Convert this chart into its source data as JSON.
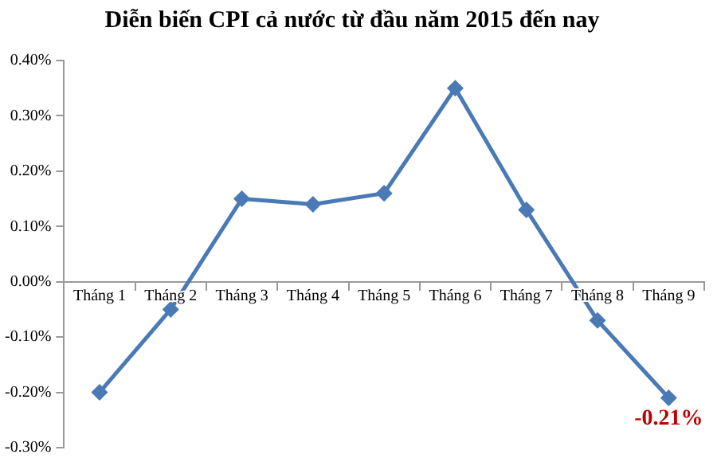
{
  "chart_data": {
    "type": "line",
    "title": "Diễn biến CPI cả nước từ đầu năm 2015 đến nay",
    "categories": [
      "Tháng 1",
      "Tháng 2",
      "Tháng 3",
      "Tháng 4",
      "Tháng 5",
      "Tháng 6",
      "Tháng 7",
      "Tháng 8",
      "Tháng 9"
    ],
    "series": [
      {
        "color": "#4a7ab5",
        "values": [
          -0.2,
          -0.05,
          0.15,
          0.14,
          0.16,
          0.35,
          0.13,
          -0.07,
          -0.21
        ]
      }
    ],
    "ylim": [
      -0.3,
      0.4
    ],
    "yticks": [
      {
        "value": -0.3,
        "label": "-0.30%"
      },
      {
        "value": -0.2,
        "label": "-0.20%"
      },
      {
        "value": -0.1,
        "label": "-0.10%"
      },
      {
        "value": 0,
        "label": "0.00%"
      },
      {
        "value": 0.1,
        "label": "0.10%"
      },
      {
        "value": 0.2,
        "label": "0.20%"
      },
      {
        "value": 0.3,
        "label": "0.30%"
      },
      {
        "value": 0.4,
        "label": "0.40%"
      }
    ],
    "annotations": [
      {
        "text": "-0.21%",
        "x": "Tháng 9",
        "y": -0.21
      }
    ],
    "grid": false,
    "legend": false,
    "marker": "diamond",
    "line_style": "solid"
  }
}
